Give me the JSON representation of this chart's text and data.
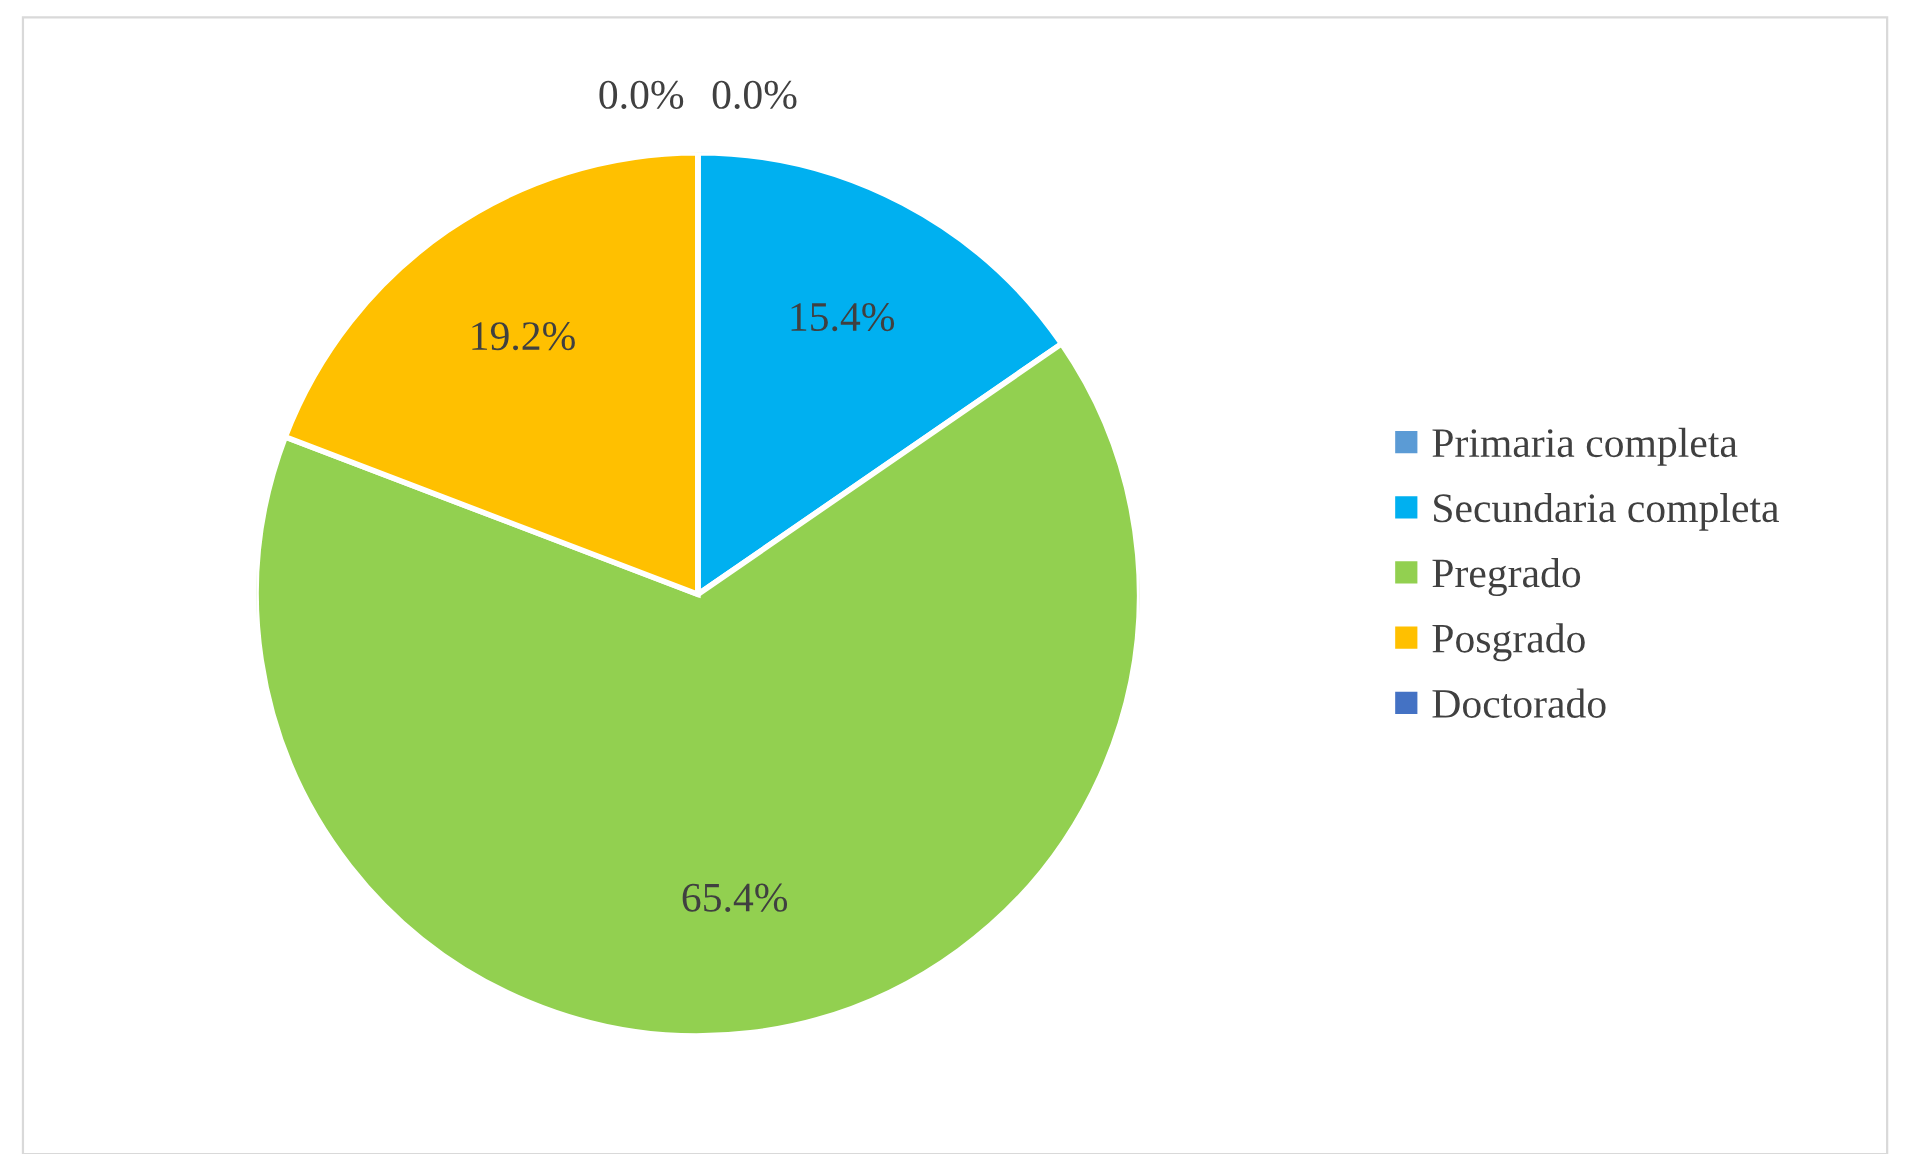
{
  "chart_data": {
    "type": "pie",
    "categories": [
      "Primaria completa",
      "Secundaria completa",
      "Pregrado",
      "Posgrado",
      "Doctorado"
    ],
    "values": [
      0.0,
      15.4,
      65.4,
      19.2,
      0.0
    ],
    "colors": [
      "#5b9bd5",
      "#00b0f0",
      "#92d050",
      "#ffc000",
      "#4472c4"
    ],
    "value_labels": [
      "0.0%",
      "15.4%",
      "65.4%",
      "19.2%",
      "0.0%"
    ],
    "legend": "right"
  }
}
